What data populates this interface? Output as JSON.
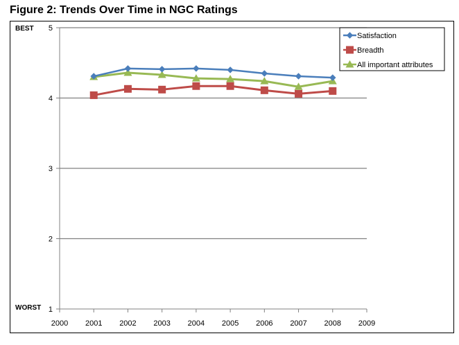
{
  "figure_title": "Figure 2: Trends Over Time in NGC Ratings",
  "y_axis_top_label": "BEST",
  "y_axis_bottom_label": "WORST",
  "colors": {
    "satisfaction": "#4A7EBB",
    "breadth": "#BE4B48",
    "important": "#98B954",
    "grid": "#808080"
  },
  "chart_data": {
    "type": "line",
    "title": "Figure 2: Trends Over Time in NGC Ratings",
    "xlabel": "",
    "ylabel": "",
    "x_ticks": [
      "2000",
      "2001",
      "2002",
      "2003",
      "2004",
      "2005",
      "2006",
      "2007",
      "2008",
      "2009"
    ],
    "xlim": [
      2000,
      2009
    ],
    "ylim": [
      1,
      5
    ],
    "y_ticks": [
      "1",
      "2",
      "3",
      "4",
      "5"
    ],
    "grid": "horizontal",
    "legend_position": "top-right",
    "series": [
      {
        "name": "Satisfaction",
        "marker": "diamond",
        "x": [
          2001,
          2002,
          2003,
          2004,
          2005,
          2006,
          2007,
          2008
        ],
        "y": [
          4.31,
          4.42,
          4.41,
          4.42,
          4.4,
          4.35,
          4.31,
          4.29
        ]
      },
      {
        "name": "Breadth",
        "marker": "square",
        "x": [
          2001,
          2002,
          2003,
          2004,
          2005,
          2006,
          2007,
          2008
        ],
        "y": [
          4.04,
          4.13,
          4.12,
          4.17,
          4.17,
          4.11,
          4.06,
          4.1
        ]
      },
      {
        "name": "All important attributes",
        "marker": "triangle",
        "x": [
          2001,
          2002,
          2003,
          2004,
          2005,
          2006,
          2007,
          2008
        ],
        "y": [
          4.3,
          4.36,
          4.33,
          4.28,
          4.27,
          4.24,
          4.16,
          4.24
        ]
      }
    ]
  }
}
